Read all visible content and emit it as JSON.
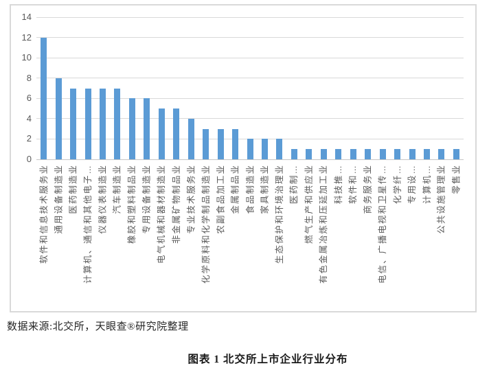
{
  "chart_data": {
    "type": "bar",
    "title": "图表 1 北交所上市企业行业分布",
    "categories": [
      "软件和信息技术服务业",
      "通用设备制造业",
      "医药制造业",
      "计算机、通信和其他电子…",
      "仪器仪表制造业",
      "汽车制造业",
      "橡胶和塑料制品业",
      "专用设备制造业",
      "电气机械和器材制造业",
      "非金属矿物制品业",
      "专业技术服务业",
      "化学原料和化学制品制造业",
      "农副食品加工业",
      "金属制品业",
      "食品制造业",
      "家具制造业",
      "生态保护和环境治理业",
      "医药制…",
      "燃气生产和供应业",
      "有色金属冶炼和压延加工业",
      "科技推…",
      "软件和…",
      "商务服务业",
      "电信、广播电视和卫星传…",
      "化学纤…",
      "专用设…",
      "计算机…",
      "公共设施管理业",
      "零售业"
    ],
    "values": [
      12,
      8,
      7,
      7,
      7,
      7,
      6,
      6,
      5,
      5,
      4,
      3,
      3,
      3,
      2,
      2,
      2,
      1,
      1,
      1,
      1,
      1,
      1,
      1,
      1,
      1,
      1,
      1,
      1
    ],
    "xlabel": "",
    "ylabel": "",
    "ylim": [
      0,
      14
    ],
    "yticks": [
      14,
      12,
      10,
      8,
      6,
      4,
      2,
      0
    ],
    "grid": true,
    "legend": "none",
    "bar_color": "#5b9bd5",
    "gridline_color": "#d9d9d9",
    "axis_text_color": "#595959"
  },
  "source_note": "数据来源:北交所，天眼查®研究院整理",
  "caption": "图表 1 北交所上市企业行业分布"
}
